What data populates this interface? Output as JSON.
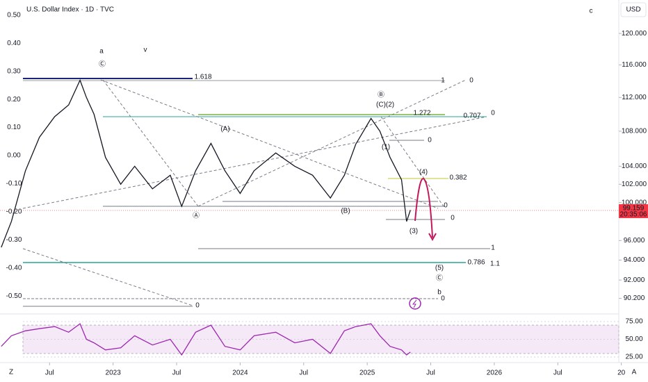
{
  "title": "U.S. Dollar Index · 1D · TVC",
  "currency": "USD",
  "corner_labels": {
    "bottom_left": "Z",
    "bottom_right": "A"
  },
  "countdown": "20:35:06",
  "annotations": [
    {
      "text": "a",
      "color": "#c2185b"
    },
    {
      "text": "v",
      "color": "#3f51b5"
    },
    {
      "text": "c",
      "color": "#c2185b"
    },
    {
      "text": "Ⓒ",
      "color": "#c2185b"
    },
    {
      "text": "1.618",
      "color": "#1a237e"
    },
    {
      "text": "1",
      "color": "#787b86"
    },
    {
      "text": "0",
      "color": "#787b86"
    },
    {
      "text": "1.272",
      "color": "#7cb342"
    },
    {
      "text": "0.707",
      "color": "#26a69a"
    },
    {
      "text": "0",
      "color": "#787b86"
    },
    {
      "text": "0",
      "color": "#787b86"
    },
    {
      "text": "(A)",
      "color": "#c2185b"
    },
    {
      "text": "Ⓐ",
      "color": "#c2185b"
    },
    {
      "text": "(B)",
      "color": "#c2185b"
    },
    {
      "text": "Ⓑ",
      "color": "#c2185b"
    },
    {
      "text": "(C)",
      "color": "#c2185b"
    },
    {
      "text": "(2)",
      "color": "#c2185b"
    },
    {
      "text": "(1)",
      "color": "#c2185b"
    },
    {
      "text": "0.382",
      "color": "#9e9d24"
    },
    {
      "text": "(4)",
      "color": "#c2185b"
    },
    {
      "text": "0",
      "color": "#787b86"
    },
    {
      "text": "0",
      "color": "#787b86"
    },
    {
      "text": "(3)",
      "color": "#c2185b"
    },
    {
      "text": "1",
      "color": "#787b86"
    },
    {
      "text": "0.786",
      "color": "#26a69a"
    },
    {
      "text": "1.1",
      "color": "#26a69a"
    },
    {
      "text": "(5)",
      "color": "#c2185b"
    },
    {
      "text": "Ⓒ",
      "color": "#c2185b"
    },
    {
      "text": "b",
      "color": "#c2185b"
    },
    {
      "text": "0",
      "color": "#787b86"
    },
    {
      "text": "0",
      "color": "#787b86"
    }
  ],
  "chart_data": [
    {
      "type": "line",
      "log_scale": true,
      "color": "#131722",
      "x": [
        2022.12,
        2022.2,
        2022.31,
        2022.42,
        2022.54,
        2022.65,
        2022.74,
        2022.79,
        2022.85,
        2022.94,
        2023.06,
        2023.17,
        2023.31,
        2023.45,
        2023.54,
        2023.65,
        2023.77,
        2023.88,
        2024.0,
        2024.11,
        2024.28,
        2024.43,
        2024.57,
        2024.71,
        2024.82,
        2024.91,
        2025.03,
        2025.1,
        2025.18,
        2025.27,
        2025.31,
        2025.34
      ],
      "values": [
        95.3,
        98.0,
        103.5,
        107.3,
        109.7,
        111.1,
        114.1,
        112.0,
        110.0,
        105.0,
        102.0,
        104.0,
        101.5,
        103.0,
        99.6,
        103.5,
        106.6,
        103.5,
        101.0,
        103.5,
        105.5,
        104.0,
        103.0,
        100.5,
        103.0,
        106.5,
        109.5,
        108.0,
        105.0,
        102.5,
        98.0,
        99.2
      ],
      "xlim": [
        2022.11,
        2026.98
      ],
      "xticks": [
        {
          "value": 2022.5,
          "label": "Jul"
        },
        2023,
        {
          "value": 2023.5,
          "label": "Jul"
        },
        2024,
        {
          "value": 2024.5,
          "label": "Jul"
        },
        2025,
        {
          "value": 2025.5,
          "label": "Jul"
        },
        2026,
        {
          "value": 2026.5,
          "label": "Jul"
        },
        {
          "value": 2027,
          "label": "20"
        }
      ],
      "ylim": [
        88.7,
        124.4
      ],
      "yticks": [
        {
          "value": 120,
          "label": "120.000"
        },
        {
          "value": 116,
          "label": "116.000"
        },
        {
          "value": 112,
          "label": "112.000"
        },
        {
          "value": 108,
          "label": "108.000"
        },
        {
          "value": 104,
          "label": "104.000"
        },
        {
          "value": 102,
          "label": "102.000"
        },
        {
          "value": 100,
          "label": "100.000"
        },
        {
          "value": 96,
          "label": "96.000"
        },
        {
          "value": 94,
          "label": "94.000"
        },
        {
          "value": 92,
          "label": "92.000"
        },
        {
          "value": 90.2,
          "label": "90.200"
        }
      ],
      "y2lim": [
        -0.564,
        0.554
      ],
      "y2ticks": [
        {
          "value": 0.5,
          "label": "0.50"
        },
        {
          "value": 0.4,
          "label": "0.40"
        },
        {
          "value": 0.3,
          "label": "0.30"
        },
        {
          "value": 0.2,
          "label": "0.20"
        },
        {
          "value": 0.1,
          "label": "0.10"
        },
        {
          "value": 0,
          "label": "0.00"
        },
        {
          "value": -0.1,
          "label": "-0.10"
        },
        {
          "value": -0.2,
          "label": "-0.20"
        },
        {
          "value": -0.3,
          "label": "-0.30"
        },
        {
          "value": -0.4,
          "label": "-0.40"
        },
        {
          "value": -0.5,
          "label": "-0.50"
        }
      ],
      "last_price": 99.159,
      "last_price_color": "#f23645"
    },
    {
      "type": "line",
      "color": "#9c27b0",
      "x": [
        2022.12,
        2022.2,
        2022.31,
        2022.42,
        2022.54,
        2022.65,
        2022.74,
        2022.79,
        2022.85,
        2022.94,
        2023.06,
        2023.17,
        2023.31,
        2023.45,
        2023.54,
        2023.65,
        2023.77,
        2023.88,
        2024.0,
        2024.11,
        2024.28,
        2024.43,
        2024.57,
        2024.71,
        2024.82,
        2024.91,
        2025.03,
        2025.1,
        2025.18,
        2025.27,
        2025.31,
        2025.34
      ],
      "values": [
        40,
        55,
        62,
        65,
        68,
        60,
        72,
        50,
        45,
        35,
        38,
        55,
        42,
        50,
        28,
        60,
        70,
        40,
        35,
        55,
        60,
        45,
        50,
        30,
        62,
        68,
        72,
        55,
        40,
        35,
        28,
        32
      ],
      "band": [
        30,
        70
      ],
      "ylim": [
        17.2,
        85.8
      ],
      "yticks": [
        {
          "value": 75,
          "label": "75.00"
        },
        {
          "value": 50,
          "label": "50.00"
        },
        {
          "value": 25,
          "label": "25.00"
        }
      ]
    }
  ]
}
